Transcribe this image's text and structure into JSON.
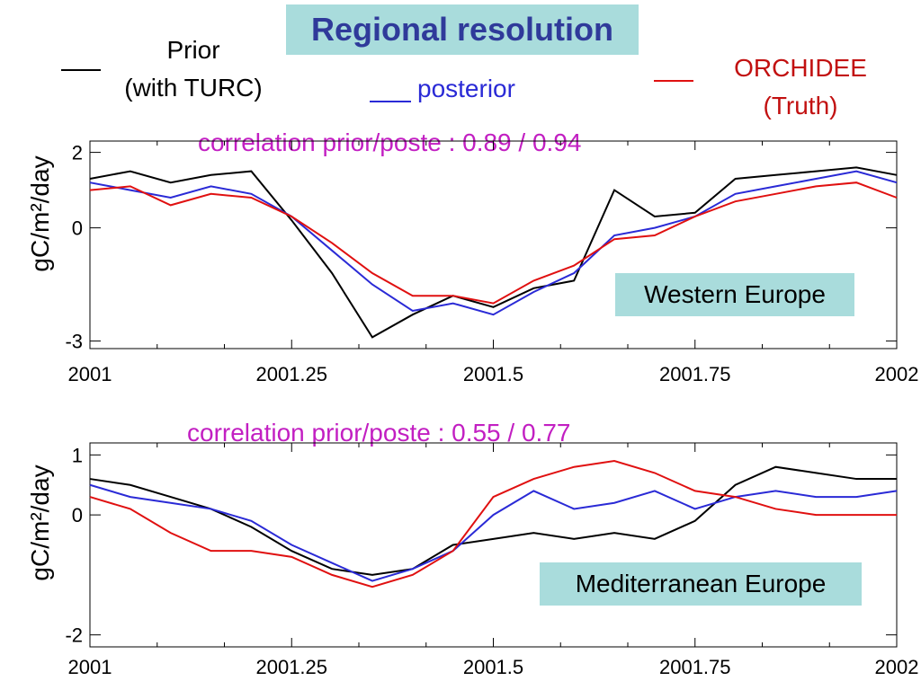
{
  "title": "Regional resolution",
  "legend": {
    "prior_label_line1": "Prior",
    "prior_label_line2": "(with TURC)",
    "posterior_label": "posterior",
    "orchidee_label_line1": "ORCHIDEE",
    "orchidee_label_line2": "(Truth)",
    "colors": {
      "prior": "#000000",
      "posterior": "#2a2ad6",
      "truth": "#e01010"
    }
  },
  "chart_data": [
    {
      "type": "line",
      "region": "Western Europe",
      "annotation": "correlation prior/poste : 0.89 / 0.94",
      "ylabel": "gC/m²/day",
      "xlabel": "",
      "xlim": [
        2001,
        2002
      ],
      "ylim": [
        -3.2,
        2.3
      ],
      "yticks": [
        2,
        0,
        -3
      ],
      "xticks": [
        "2001",
        "2001.25",
        "2001.5",
        "2001.75",
        "2002"
      ],
      "x": [
        2001.0,
        2001.05,
        2001.1,
        2001.15,
        2001.2,
        2001.25,
        2001.3,
        2001.35,
        2001.4,
        2001.45,
        2001.5,
        2001.55,
        2001.6,
        2001.65,
        2001.7,
        2001.75,
        2001.8,
        2001.85,
        2001.9,
        2001.95,
        2002.0
      ],
      "series": [
        {
          "name": "Prior (with TURC)",
          "color": "#000000",
          "values": [
            1.3,
            1.5,
            1.2,
            1.4,
            1.5,
            0.2,
            -1.2,
            -2.9,
            -2.3,
            -1.8,
            -2.1,
            -1.6,
            -1.4,
            1.0,
            0.3,
            0.4,
            1.3,
            1.4,
            1.5,
            1.6,
            1.4
          ]
        },
        {
          "name": "posterior",
          "color": "#2a2ad6",
          "values": [
            1.2,
            1.0,
            0.8,
            1.1,
            0.9,
            0.3,
            -0.6,
            -1.5,
            -2.2,
            -2.0,
            -2.3,
            -1.7,
            -1.2,
            -0.2,
            0.0,
            0.3,
            0.9,
            1.1,
            1.3,
            1.5,
            1.2
          ]
        },
        {
          "name": "ORCHIDEE (Truth)",
          "color": "#e01010",
          "values": [
            1.0,
            1.1,
            0.6,
            0.9,
            0.8,
            0.3,
            -0.4,
            -1.2,
            -1.8,
            -1.8,
            -2.0,
            -1.4,
            -1.0,
            -0.3,
            -0.2,
            0.3,
            0.7,
            0.9,
            1.1,
            1.2,
            0.8
          ]
        }
      ]
    },
    {
      "type": "line",
      "region": "Mediterranean Europe",
      "annotation": "correlation prior/poste : 0.55 / 0.77",
      "ylabel": "gC/m²/day",
      "xlabel": "",
      "xlim": [
        2001,
        2002
      ],
      "ylim": [
        -2.2,
        1.2
      ],
      "yticks": [
        1,
        0,
        -2
      ],
      "xticks": [
        "2001",
        "2001.25",
        "2001.5",
        "2001.75",
        "2002"
      ],
      "x": [
        2001.0,
        2001.05,
        2001.1,
        2001.15,
        2001.2,
        2001.25,
        2001.3,
        2001.35,
        2001.4,
        2001.45,
        2001.5,
        2001.55,
        2001.6,
        2001.65,
        2001.7,
        2001.75,
        2001.8,
        2001.85,
        2001.9,
        2001.95,
        2002.0
      ],
      "series": [
        {
          "name": "Prior (with TURC)",
          "color": "#000000",
          "values": [
            0.6,
            0.5,
            0.3,
            0.1,
            -0.2,
            -0.6,
            -0.9,
            -1.0,
            -0.9,
            -0.5,
            -0.4,
            -0.3,
            -0.4,
            -0.3,
            -0.4,
            -0.1,
            0.5,
            0.8,
            0.7,
            0.6,
            0.6
          ]
        },
        {
          "name": "posterior",
          "color": "#2a2ad6",
          "values": [
            0.5,
            0.3,
            0.2,
            0.1,
            -0.1,
            -0.5,
            -0.8,
            -1.1,
            -0.9,
            -0.6,
            0.0,
            0.4,
            0.1,
            0.2,
            0.4,
            0.1,
            0.3,
            0.4,
            0.3,
            0.3,
            0.4
          ]
        },
        {
          "name": "ORCHIDEE (Truth)",
          "color": "#e01010",
          "values": [
            0.3,
            0.1,
            -0.3,
            -0.6,
            -0.6,
            -0.7,
            -1.0,
            -1.2,
            -1.0,
            -0.6,
            0.3,
            0.6,
            0.8,
            0.9,
            0.7,
            0.4,
            0.3,
            0.1,
            0.0,
            0.0,
            0.0
          ]
        }
      ]
    }
  ]
}
